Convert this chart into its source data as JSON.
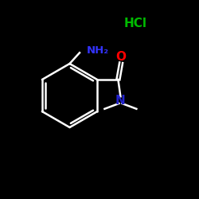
{
  "background_color": "#000000",
  "bond_color": "#ffffff",
  "nh2_color": "#3333ff",
  "o_color": "#ff0000",
  "n_color": "#2222cc",
  "hcl_color": "#00bb00",
  "hcl_text": "HCl",
  "nh2_text": "NH₂",
  "o_text": "O",
  "n_text": "N",
  "figsize": [
    2.5,
    2.5
  ],
  "dpi": 100
}
